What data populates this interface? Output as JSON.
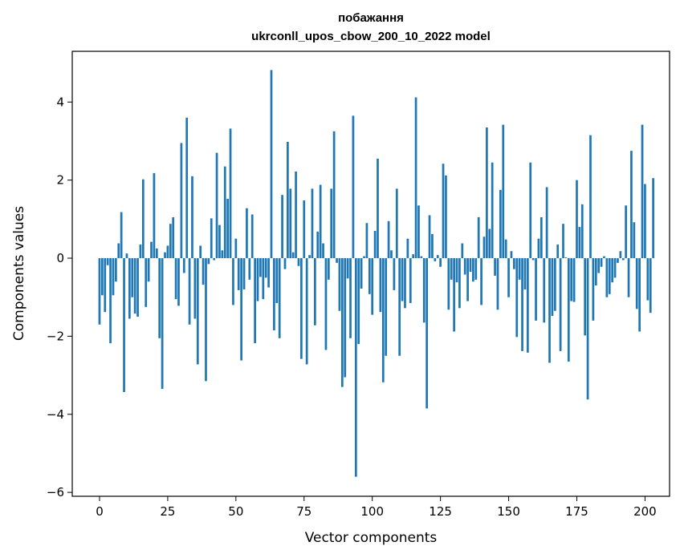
{
  "chart_data": {
    "type": "bar",
    "title_lines": [
      "побажання",
      "ukrconll_upos_cbow_200_10_2022 model"
    ],
    "xlabel": "Vector components",
    "ylabel": "Components values",
    "xlim": [
      -10,
      209
    ],
    "ylim": [
      -6.1,
      5.3
    ],
    "x_ticks": [
      0,
      25,
      50,
      75,
      100,
      125,
      150,
      175,
      200
    ],
    "y_ticks": [
      -6,
      -4,
      -2,
      0,
      2,
      4
    ],
    "bar_color": "#1f77b4",
    "grid": false,
    "legend": "none",
    "values": [
      -1.7,
      -0.95,
      -1.38,
      -0.18,
      -2.18,
      -0.95,
      -0.6,
      0.38,
      1.18,
      -3.43,
      0.12,
      -1.55,
      -1.0,
      -1.42,
      -1.5,
      0.35,
      2.02,
      -1.25,
      -0.6,
      0.42,
      2.18,
      0.25,
      -2.05,
      -3.35,
      0.15,
      0.32,
      0.88,
      1.05,
      -1.05,
      -1.22,
      2.95,
      -0.38,
      3.6,
      -1.7,
      2.1,
      -1.55,
      -2.72,
      0.32,
      -0.68,
      -3.15,
      -0.15,
      1.02,
      -0.05,
      2.7,
      0.85,
      0.2,
      2.35,
      1.52,
      3.32,
      -1.2,
      0.5,
      -0.82,
      -2.62,
      -0.8,
      1.28,
      -0.55,
      1.12,
      -2.18,
      -1.1,
      -0.48,
      -1.05,
      -0.5,
      -0.75,
      4.82,
      -1.85,
      -1.15,
      -2.05,
      1.62,
      -0.28,
      2.98,
      1.78,
      0.15,
      2.22,
      -0.2,
      -2.58,
      1.48,
      -2.72,
      0.08,
      1.78,
      -1.72,
      0.68,
      1.88,
      0.38,
      -2.35,
      -0.55,
      1.78,
      3.25,
      -0.12,
      -1.35,
      -3.3,
      -3.05,
      -0.52,
      -2.05,
      3.65,
      -5.6,
      -2.2,
      -0.78,
      0.05,
      0.9,
      -0.92,
      -1.45,
      0.7,
      2.55,
      -1.38,
      -3.18,
      -2.5,
      0.95,
      0.2,
      -0.82,
      1.78,
      -2.5,
      -1.1,
      -1.28,
      0.5,
      -1.15,
      0.1,
      4.12,
      1.35,
      0.05,
      -1.65,
      -3.85,
      1.1,
      0.62,
      -0.08,
      0.08,
      -0.22,
      2.42,
      2.12,
      -1.32,
      -0.55,
      -1.88,
      -0.62,
      -1.28,
      0.38,
      -0.42,
      -1.1,
      -0.35,
      -0.6,
      -0.55,
      1.05,
      -1.2,
      0.55,
      3.35,
      0.75,
      2.45,
      -0.45,
      -1.32,
      1.75,
      3.42,
      0.48,
      -1.0,
      0.18,
      -0.28,
      -2.02,
      -0.55,
      -2.38,
      -0.8,
      -2.42,
      2.45,
      -0.05,
      -1.6,
      0.5,
      1.05,
      -1.65,
      1.82,
      -2.68,
      -1.48,
      -1.35,
      0.35,
      -2.38,
      0.88,
      0.02,
      -2.65,
      -1.1,
      -1.12,
      2.0,
      0.8,
      1.38,
      -1.98,
      -3.62,
      3.15,
      -1.6,
      -0.7,
      -0.38,
      -0.22,
      0.05,
      -1.0,
      -0.92,
      -0.62,
      -0.5,
      -0.12,
      0.18,
      -0.05,
      1.35,
      -1.0,
      2.75,
      0.92,
      -1.3,
      -1.88,
      3.42,
      1.9,
      -1.08,
      -1.4,
      2.05
    ]
  }
}
